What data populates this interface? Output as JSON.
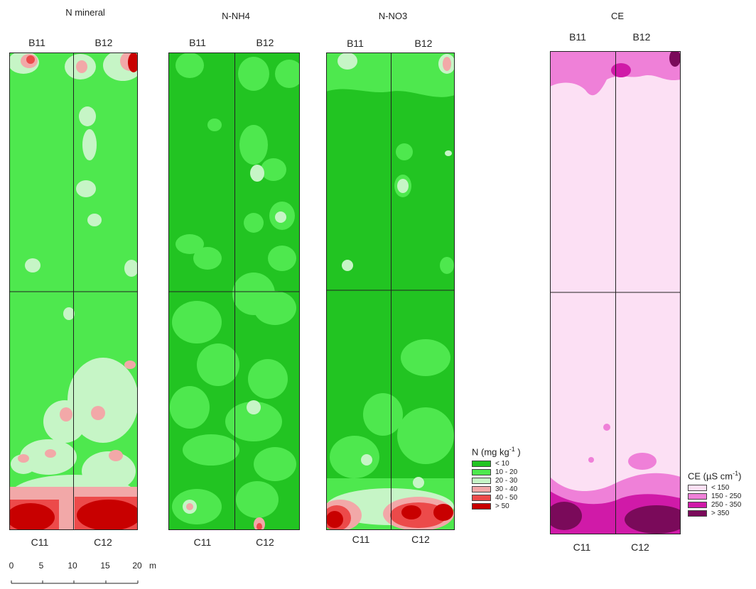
{
  "maps": [
    {
      "title": "N mineral",
      "base_color": "#4ee84e",
      "plots": {
        "top_left": "B11",
        "top_right": "B12",
        "bottom_left": "C11",
        "bottom_right": "C12"
      }
    },
    {
      "title": "N-NH4",
      "base_color": "#22c422",
      "plots": {
        "top_left": "B11",
        "top_right": "B12",
        "bottom_left": "C11",
        "bottom_right": "C12"
      }
    },
    {
      "title": "N-NO3",
      "base_color": "#22c422",
      "plots": {
        "top_left": "B11",
        "top_right": "B12",
        "bottom_left": "C11",
        "bottom_right": "C12"
      }
    },
    {
      "title": "CE",
      "base_color": "#fce0f4",
      "plots": {
        "top_left": "B11",
        "top_right": "B12",
        "bottom_left": "C11",
        "bottom_right": "C12"
      }
    }
  ],
  "n_legend": {
    "title_main": "N (mg kg",
    "title_sup": "-1",
    "title_end": " )",
    "items": [
      {
        "label": "< 10",
        "color": "#22c422"
      },
      {
        "label": "10 - 20",
        "color": "#4ee84e"
      },
      {
        "label": "20 - 30",
        "color": "#c6f5c6"
      },
      {
        "label": "30 - 40",
        "color": "#f2a8a8"
      },
      {
        "label": "40 - 50",
        "color": "#ec4a4a"
      },
      {
        "label": "> 50",
        "color": "#c80000"
      }
    ]
  },
  "ce_legend": {
    "title_main": "CE (µS cm",
    "title_sup": "-1",
    "title_end": ")",
    "items": [
      {
        "label": "< 150",
        "color": "#fce0f4"
      },
      {
        "label": "150 - 250",
        "color": "#ef80d8"
      },
      {
        "label": "250 - 350",
        "color": "#d01aa8"
      },
      {
        "label": "> 350",
        "color": "#7a0a5a"
      }
    ]
  },
  "scale": {
    "ticks": [
      "0",
      "5",
      "10",
      "15",
      "20"
    ],
    "unit": "m"
  }
}
